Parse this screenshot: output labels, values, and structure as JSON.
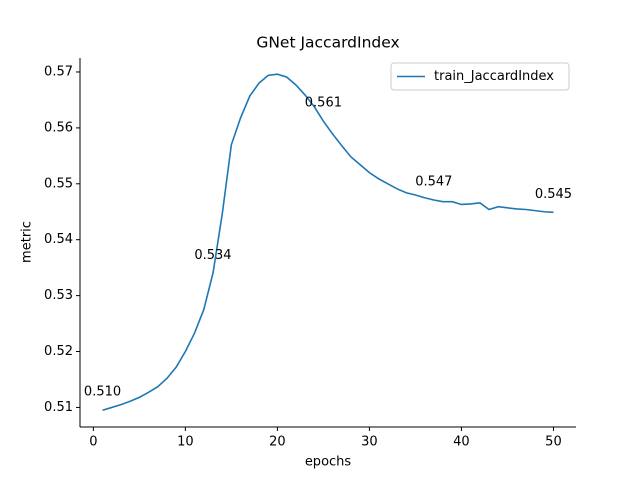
{
  "chart_data": {
    "type": "line",
    "title": "GNet JaccardIndex",
    "xlabel": "epochs",
    "ylabel": "metric",
    "x": [
      1,
      2,
      3,
      4,
      5,
      6,
      7,
      8,
      9,
      10,
      11,
      12,
      13,
      14,
      15,
      16,
      17,
      18,
      19,
      20,
      21,
      22,
      23,
      24,
      25,
      26,
      27,
      28,
      29,
      30,
      31,
      32,
      33,
      34,
      35,
      36,
      37,
      38,
      39,
      40,
      41,
      42,
      43,
      44,
      45,
      46,
      47,
      48,
      49,
      50
    ],
    "series": [
      {
        "name": "train_JaccardIndex",
        "color": "#1f77b4",
        "values": [
          0.5095,
          0.51,
          0.5105,
          0.5111,
          0.5118,
          0.5127,
          0.5137,
          0.5152,
          0.5172,
          0.52,
          0.5233,
          0.5275,
          0.534,
          0.5445,
          0.557,
          0.5618,
          0.5657,
          0.568,
          0.5694,
          0.5696,
          0.5691,
          0.5677,
          0.5659,
          0.5638,
          0.5612,
          0.5589,
          0.5568,
          0.5548,
          0.5534,
          0.552,
          0.5509,
          0.55,
          0.5491,
          0.5484,
          0.548,
          0.5475,
          0.5471,
          0.5468,
          0.5468,
          0.5463,
          0.5464,
          0.5466,
          0.5454,
          0.5459,
          0.5457,
          0.5455,
          0.5454,
          0.5452,
          0.545,
          0.5449
        ],
        "value_labels": [
          "0.510",
          null,
          null,
          null,
          null,
          null,
          null,
          null,
          null,
          null,
          null,
          null,
          "0.534",
          null,
          null,
          null,
          null,
          null,
          null,
          null,
          null,
          null,
          null,
          null,
          "0.561",
          null,
          null,
          null,
          null,
          null,
          null,
          null,
          null,
          null,
          null,
          null,
          "0.547",
          null,
          null,
          null,
          null,
          null,
          null,
          null,
          null,
          null,
          null,
          null,
          null,
          "0.545"
        ]
      }
    ],
    "xlim": [
      -1.45,
      52.45
    ],
    "xticks": [
      0,
      10,
      20,
      30,
      40,
      50
    ],
    "ylim": [
      0.5065,
      0.5725
    ],
    "yticks": [
      0.51,
      0.52,
      0.53,
      0.54,
      0.55,
      0.56,
      0.57
    ],
    "legend": "upper right"
  }
}
